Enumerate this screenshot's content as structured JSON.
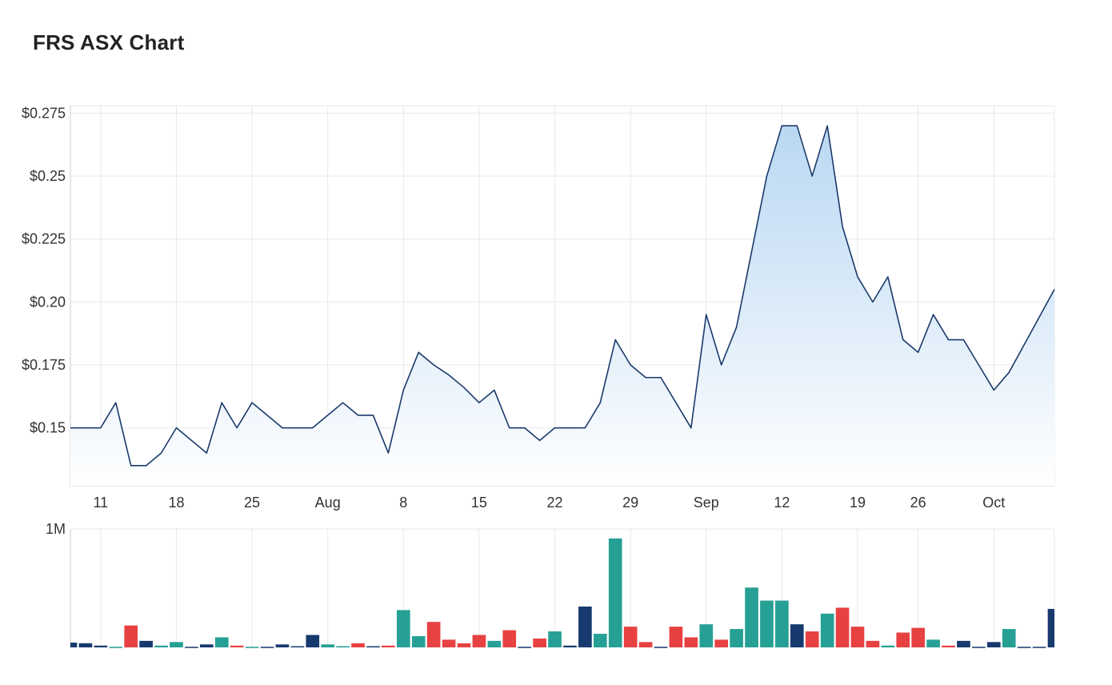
{
  "title": "FRS ASX Chart",
  "colors": {
    "line": "#1b3a6b",
    "area_top": "#b7d6f2",
    "area_bottom": "#ffffff",
    "vol_up": "#26a095",
    "vol_down": "#e84142",
    "vol_flat": "#173a6e"
  },
  "chart_data": [
    {
      "type": "area",
      "name": "price",
      "y_tick_labels": [
        "$0.275",
        "$0.25",
        "$0.225",
        "$0.20",
        "$0.175",
        "$0.15"
      ],
      "y_ticks": [
        0.275,
        0.25,
        0.225,
        0.2,
        0.175,
        0.15
      ],
      "ylim": [
        0.127,
        0.278
      ],
      "x_tick_labels": [
        "11",
        "18",
        "25",
        "Aug",
        "8",
        "15",
        "22",
        "29",
        "Sep",
        "12",
        "19",
        "26",
        "Oct"
      ],
      "x_tick_index": [
        2,
        7,
        12,
        17,
        22,
        27,
        32,
        37,
        42,
        47,
        52,
        56,
        61
      ],
      "grid": true,
      "values": [
        0.15,
        0.15,
        0.15,
        0.16,
        0.135,
        0.135,
        0.14,
        0.15,
        0.145,
        0.14,
        0.16,
        0.15,
        0.16,
        0.155,
        0.15,
        0.15,
        0.15,
        0.155,
        0.16,
        0.155,
        0.155,
        0.14,
        0.165,
        0.18,
        0.175,
        0.171,
        0.166,
        0.16,
        0.165,
        0.15,
        0.15,
        0.145,
        0.15,
        0.15,
        0.15,
        0.16,
        0.185,
        0.175,
        0.17,
        0.17,
        0.16,
        0.15,
        0.195,
        0.175,
        0.19,
        0.22,
        0.25,
        0.27,
        0.27,
        0.25,
        0.27,
        0.23,
        0.21,
        0.2,
        0.21,
        0.185,
        0.18,
        0.195,
        0.185,
        0.185,
        0.175,
        0.165,
        0.172,
        0.183,
        0.194,
        0.205
      ]
    },
    {
      "type": "bar",
      "name": "volume",
      "y_tick_labels": [
        "1M"
      ],
      "y_ticks": [
        1000000
      ],
      "ylim": [
        0,
        1000000
      ],
      "values": [
        40000,
        35000,
        15000,
        5000,
        185000,
        55000,
        15000,
        45000,
        5000,
        25000,
        85000,
        15000,
        5000,
        5000,
        25000,
        10000,
        105000,
        25000,
        10000,
        35000,
        10000,
        15000,
        315000,
        95000,
        215000,
        65000,
        35000,
        105000,
        55000,
        145000,
        5000,
        75000,
        135000,
        15000,
        345000,
        115000,
        920000,
        175000,
        45000,
        5000,
        175000,
        85000,
        195000,
        65000,
        155000,
        505000,
        395000,
        395000,
        195000,
        135000,
        285000,
        335000,
        175000,
        55000,
        15000,
        125000,
        165000,
        65000,
        15000,
        55000,
        5000,
        45000,
        155000,
        5000,
        5000,
        325000
      ],
      "colors_per_bar": [
        "flat",
        "flat",
        "flat",
        "up",
        "down",
        "flat",
        "up",
        "up",
        "flat",
        "flat",
        "up",
        "down",
        "up",
        "flat",
        "flat",
        "flat",
        "flat",
        "up",
        "up",
        "down",
        "flat",
        "down",
        "up",
        "up",
        "down",
        "down",
        "down",
        "down",
        "up",
        "down",
        "flat",
        "down",
        "up",
        "flat",
        "flat",
        "up",
        "up",
        "down",
        "down",
        "flat",
        "down",
        "down",
        "up",
        "down",
        "up",
        "up",
        "up",
        "up",
        "flat",
        "down",
        "up",
        "down",
        "down",
        "down",
        "up",
        "down",
        "down",
        "up",
        "down",
        "flat",
        "flat",
        "flat",
        "up",
        "flat",
        "flat",
        "flat"
      ]
    }
  ]
}
